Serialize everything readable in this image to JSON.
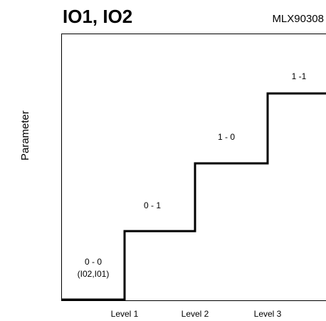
{
  "title": "IO1, IO2",
  "subtitle": "MLX90308",
  "y_label": "Parameter",
  "steps": [
    {
      "label": "0 - 0",
      "sublabel": "(I02,I01)"
    },
    {
      "label": "0 - 1"
    },
    {
      "label": "1 - 0"
    },
    {
      "label": "1 -1"
    }
  ],
  "levels": [
    "Level 1",
    "Level 2",
    "Level 3"
  ]
}
